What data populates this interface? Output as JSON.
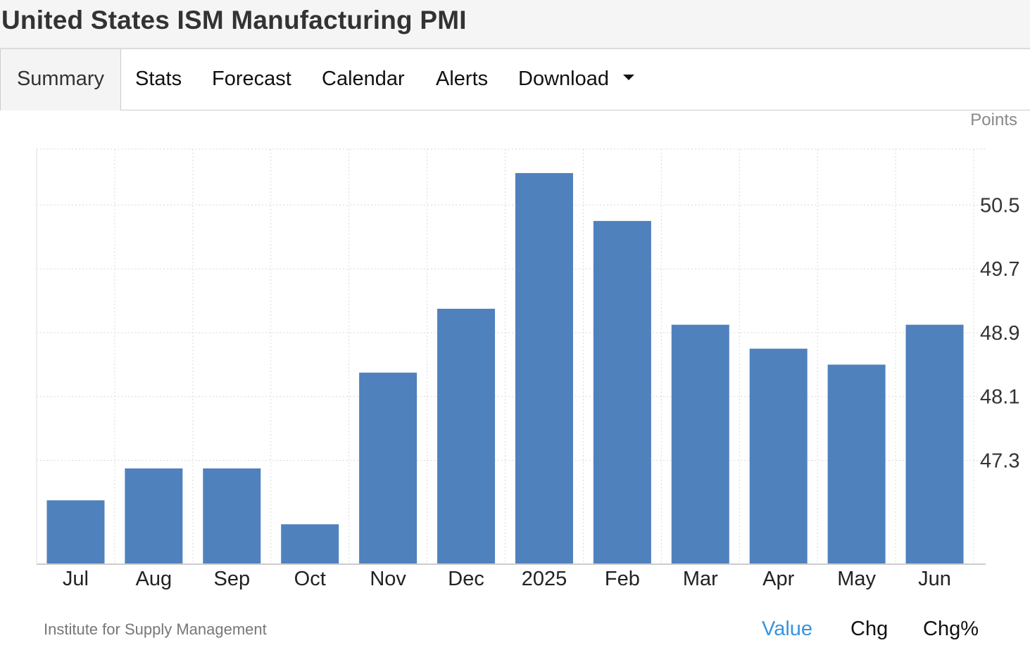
{
  "title": "United States ISM Manufacturing PMI",
  "tabs": [
    {
      "label": "Summary",
      "active": true
    },
    {
      "label": "Stats"
    },
    {
      "label": "Forecast"
    },
    {
      "label": "Calendar"
    },
    {
      "label": "Alerts"
    },
    {
      "label": "Download",
      "dropdown": true
    }
  ],
  "units": "Points",
  "source": "Institute for Supply Management",
  "view_buttons": [
    {
      "label": "Value",
      "active": true
    },
    {
      "label": "Chg"
    },
    {
      "label": "Chg%"
    }
  ],
  "colors": {
    "bar": "#4f81bd",
    "active_link": "#3794de",
    "grid": "#d9d9d9"
  },
  "chart_data": {
    "type": "bar",
    "categories": [
      "Jul",
      "Aug",
      "Sep",
      "Oct",
      "Nov",
      "Dec",
      "2025",
      "Feb",
      "Mar",
      "Apr",
      "May",
      "Jun"
    ],
    "values": [
      46.8,
      47.2,
      47.2,
      46.5,
      48.4,
      49.2,
      50.9,
      50.3,
      49.0,
      48.7,
      48.5,
      49.0
    ],
    "y_ticks": [
      47.3,
      48.1,
      48.9,
      49.7,
      50.5
    ],
    "ylim": [
      46.0,
      51.2
    ],
    "ylabel": "Points",
    "grid": true,
    "y_axis_position": "right"
  }
}
